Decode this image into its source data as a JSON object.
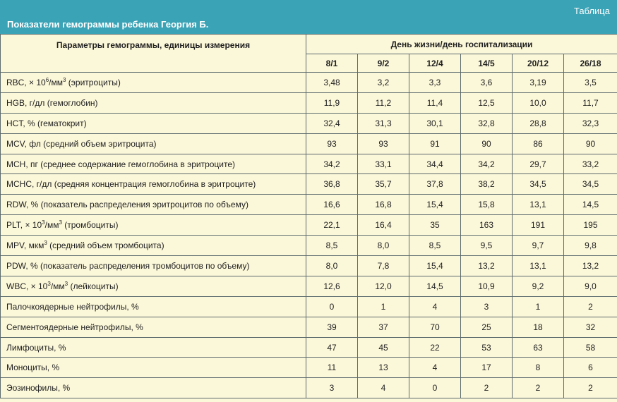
{
  "header": {
    "label": "Таблица",
    "title": "Показатели гемограммы ребенка Георгия Б."
  },
  "table": {
    "param_header": "Параметры гемограммы, единицы измерения",
    "group_header": "День жизни/день госпитализации",
    "columns": [
      "8/1",
      "9/2",
      "12/4",
      "14/5",
      "20/12",
      "26/18"
    ],
    "rows": [
      {
        "pre": "RBC, × 10",
        "sup": "6",
        "post": "/мм",
        "sup2": "3",
        "post2": " (эритроциты)",
        "values": [
          "3,48",
          "3,2",
          "3,3",
          "3,6",
          "3,19",
          "3,5"
        ]
      },
      {
        "pre": "HGB, г/дл (гемоглобин)",
        "values": [
          "11,9",
          "11,2",
          "11,4",
          "12,5",
          "10,0",
          "11,7"
        ]
      },
      {
        "pre": "HCT, % (гематокрит)",
        "values": [
          "32,4",
          "31,3",
          "30,1",
          "32,8",
          "28,8",
          "32,3"
        ]
      },
      {
        "pre": "MCV, фл (средний объем эритроцита)",
        "values": [
          "93",
          "93",
          "91",
          "90",
          "86",
          "90"
        ]
      },
      {
        "pre": "MCH, пг (среднее содержание гемоглобина в эритроците)",
        "values": [
          "34,2",
          "33,1",
          "34,4",
          "34,2",
          "29,7",
          "33,2"
        ]
      },
      {
        "pre": "MCHC, г/дл (средняя концентрация гемоглобина в эритроците)",
        "values": [
          "36,8",
          "35,7",
          "37,8",
          "38,2",
          "34,5",
          "34,5"
        ]
      },
      {
        "pre": "RDW, % (показатель распределения эритроцитов по объему)",
        "values": [
          "16,6",
          "16,8",
          "15,4",
          "15,8",
          "13,1",
          "14,5"
        ]
      },
      {
        "pre": "PLT, × 10",
        "sup": "3",
        "post": "/мм",
        "sup2": "3",
        "post2": " (тромбоциты)",
        "values": [
          "22,1",
          "16,4",
          "35",
          "163",
          "191",
          "195"
        ]
      },
      {
        "pre": "MPV, мкм",
        "sup": "3",
        "post": " (средний объем тромбоцита)",
        "values": [
          "8,5",
          "8,0",
          "8,5",
          "9,5",
          "9,7",
          "9,8"
        ]
      },
      {
        "pre": "PDW, % (показатель распределения тромбоцитов по объему)",
        "values": [
          "8,0",
          "7,8",
          "15,4",
          "13,2",
          "13,1",
          "13,2"
        ]
      },
      {
        "pre": "WBC, × 10",
        "sup": "3",
        "post": "/мм",
        "sup2": "3",
        "post2": " (лейкоциты)",
        "values": [
          "12,6",
          "12,0",
          "14,5",
          "10,9",
          "9,2",
          "9,0"
        ]
      },
      {
        "pre": "Палочкоядерные нейтрофилы, %",
        "values": [
          "0",
          "1",
          "4",
          "3",
          "1",
          "2"
        ]
      },
      {
        "pre": "Сегментоядерные нейтрофилы, %",
        "values": [
          "39",
          "37",
          "70",
          "25",
          "18",
          "32"
        ]
      },
      {
        "pre": "Лимфоциты, %",
        "values": [
          "47",
          "45",
          "22",
          "53",
          "63",
          "58"
        ]
      },
      {
        "pre": "Моноциты, %",
        "values": [
          "11",
          "13",
          "4",
          "17",
          "8",
          "6"
        ]
      },
      {
        "pre": "Эозинофилы, %",
        "values": [
          "3",
          "4",
          "0",
          "2",
          "2",
          "2"
        ]
      }
    ]
  }
}
